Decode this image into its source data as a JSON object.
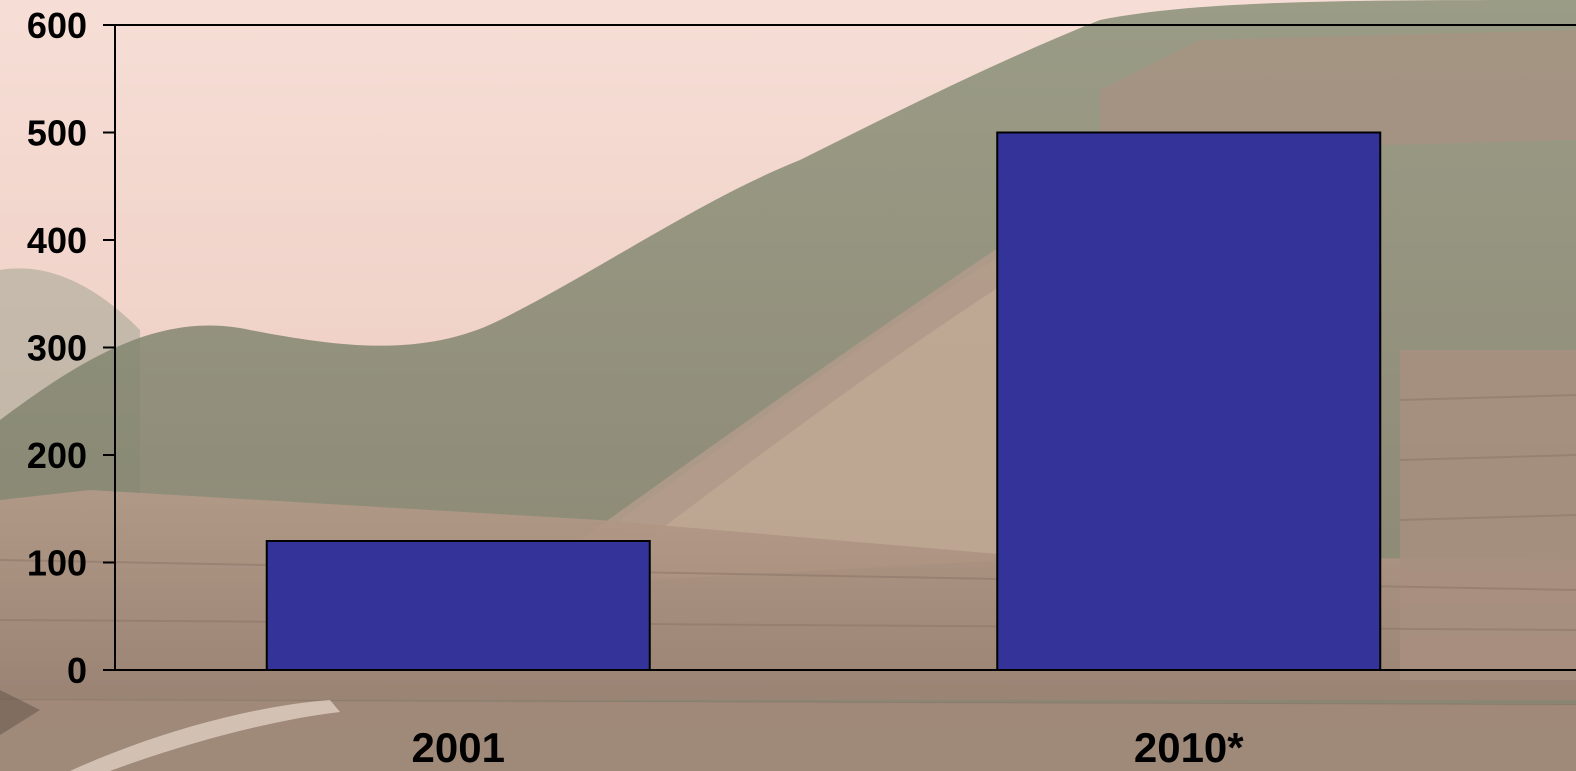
{
  "chart_data": {
    "type": "bar",
    "categories": [
      "2001",
      "2010*"
    ],
    "values": [
      120,
      500
    ],
    "ylim": [
      0,
      600
    ],
    "yticks": [
      "0",
      "100",
      "200",
      "300",
      "400",
      "500",
      "600"
    ],
    "grid": false,
    "legend": "none",
    "bar_color": "#333399",
    "axis_color": "#000000",
    "background": "photo of the Great Wall of China under a hazy pink sky"
  }
}
